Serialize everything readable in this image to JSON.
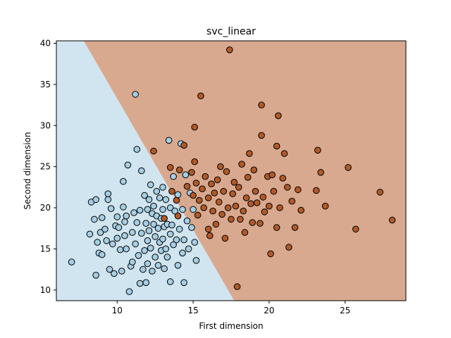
{
  "chart_data": {
    "type": "scatter",
    "title": "svc_linear",
    "xlabel": "First dimension",
    "ylabel": "Second dimension",
    "xlim": [
      6.0,
      29.0
    ],
    "ylim": [
      8.7,
      40.3
    ],
    "xticks": [
      10,
      15,
      20,
      25
    ],
    "yticks": [
      10,
      15,
      20,
      25,
      30,
      35,
      40
    ],
    "grid": false,
    "legend": "none",
    "decision_boundary": {
      "points": [
        [
          7.8,
          40.3
        ],
        [
          17.7,
          8.7
        ]
      ],
      "left_region_color": "#d1e5f0",
      "right_region_color": "#d9a98f"
    },
    "series": [
      {
        "color": "#a6cee3",
        "points": [
          [
            7.0,
            13.4
          ],
          [
            8.2,
            16.8
          ],
          [
            8.3,
            20.7
          ],
          [
            8.5,
            18.6
          ],
          [
            8.6,
            11.8
          ],
          [
            8.6,
            21.0
          ],
          [
            8.7,
            15.8
          ],
          [
            8.8,
            14.5
          ],
          [
            8.9,
            17.0
          ],
          [
            9.0,
            14.3
          ],
          [
            9.0,
            18.8
          ],
          [
            9.2,
            17.4
          ],
          [
            9.3,
            16.0
          ],
          [
            9.4,
            21.7
          ],
          [
            9.4,
            21.0
          ],
          [
            9.5,
            12.5
          ],
          [
            9.6,
            19.9
          ],
          [
            9.7,
            15.6
          ],
          [
            9.8,
            12.0
          ],
          [
            9.9,
            17.8
          ],
          [
            10.0,
            18.9
          ],
          [
            10.0,
            16.3
          ],
          [
            10.1,
            17.6
          ],
          [
            10.2,
            14.9
          ],
          [
            10.3,
            12.3
          ],
          [
            10.4,
            23.2
          ],
          [
            10.4,
            20.1
          ],
          [
            10.5,
            18.3
          ],
          [
            10.5,
            16.6
          ],
          [
            10.6,
            19.0
          ],
          [
            10.6,
            15.0
          ],
          [
            10.7,
            25.2
          ],
          [
            10.8,
            9.8
          ],
          [
            10.9,
            12.9
          ],
          [
            11.0,
            17.0
          ],
          [
            11.0,
            13.4
          ],
          [
            11.1,
            19.4
          ],
          [
            11.2,
            15.6
          ],
          [
            11.2,
            33.8
          ],
          [
            11.3,
            18.2
          ],
          [
            11.3,
            27.1
          ],
          [
            11.4,
            14.2
          ],
          [
            11.5,
            10.8
          ],
          [
            11.5,
            19.7
          ],
          [
            11.6,
            24.5
          ],
          [
            11.6,
            16.9
          ],
          [
            11.7,
            12.5
          ],
          [
            11.8,
            21.5
          ],
          [
            11.8,
            14.8
          ],
          [
            11.9,
            18.1
          ],
          [
            11.9,
            10.9
          ],
          [
            12.0,
            19.8
          ],
          [
            12.0,
            16.0
          ],
          [
            12.0,
            13.2
          ],
          [
            12.1,
            21.0
          ],
          [
            12.1,
            17.2
          ],
          [
            12.2,
            22.8
          ],
          [
            12.2,
            15.1
          ],
          [
            12.3,
            19.3
          ],
          [
            12.3,
            12.3
          ],
          [
            12.4,
            20.2
          ],
          [
            12.4,
            18.0
          ],
          [
            12.5,
            16.5
          ],
          [
            12.5,
            14.0
          ],
          [
            12.6,
            22.0
          ],
          [
            12.6,
            19.0
          ],
          [
            12.7,
            17.5
          ],
          [
            12.7,
            13.0
          ],
          [
            12.8,
            21.2
          ],
          [
            12.8,
            15.8
          ],
          [
            12.9,
            18.7
          ],
          [
            12.9,
            14.8
          ],
          [
            13.0,
            22.5
          ],
          [
            13.0,
            19.8
          ],
          [
            13.0,
            16.2
          ],
          [
            13.1,
            17.7
          ],
          [
            13.1,
            12.6
          ],
          [
            13.2,
            21.0
          ],
          [
            13.2,
            15.0
          ],
          [
            13.3,
            18.0
          ],
          [
            13.3,
            14.0
          ],
          [
            13.4,
            28.2
          ],
          [
            13.5,
            20.0
          ],
          [
            13.5,
            16.8
          ],
          [
            13.5,
            11.0
          ],
          [
            13.6,
            17.9
          ],
          [
            13.7,
            23.8
          ],
          [
            13.7,
            15.5
          ],
          [
            13.8,
            19.6
          ],
          [
            13.9,
            16.1
          ],
          [
            14.0,
            21.6
          ],
          [
            14.0,
            13.0
          ],
          [
            14.1,
            17.4
          ],
          [
            14.2,
            27.8
          ],
          [
            14.3,
            19.8
          ],
          [
            14.3,
            14.5
          ],
          [
            14.4,
            16.1
          ],
          [
            14.4,
            10.9
          ],
          [
            14.5,
            24.0
          ],
          [
            14.6,
            18.4
          ],
          [
            14.7,
            15.0
          ],
          [
            14.8,
            21.8
          ],
          [
            14.9,
            17.6
          ],
          [
            15.0,
            19.8
          ],
          [
            15.1,
            15.8
          ],
          [
            15.2,
            13.6
          ]
        ]
      },
      {
        "color": "#b15928",
        "points": [
          [
            12.4,
            26.9
          ],
          [
            13.1,
            18.7
          ],
          [
            13.5,
            24.9
          ],
          [
            13.6,
            22.0
          ],
          [
            13.9,
            20.9
          ],
          [
            14.0,
            19.0
          ],
          [
            14.1,
            24.6
          ],
          [
            14.4,
            27.6
          ],
          [
            14.6,
            22.6
          ],
          [
            14.9,
            24.3
          ],
          [
            15.0,
            21.5
          ],
          [
            15.1,
            29.8
          ],
          [
            15.1,
            25.6
          ],
          [
            15.2,
            23.0
          ],
          [
            15.3,
            19.1
          ],
          [
            15.4,
            20.9
          ],
          [
            15.5,
            33.6
          ],
          [
            15.6,
            22.3
          ],
          [
            15.7,
            20.0
          ],
          [
            15.8,
            23.8
          ],
          [
            16.0,
            17.4
          ],
          [
            16.0,
            21.2
          ],
          [
            16.1,
            16.6
          ],
          [
            16.2,
            22.9
          ],
          [
            16.3,
            19.6
          ],
          [
            16.4,
            21.8
          ],
          [
            16.5,
            18.0
          ],
          [
            16.6,
            23.4
          ],
          [
            16.7,
            20.7
          ],
          [
            16.8,
            25.0
          ],
          [
            16.9,
            19.2
          ],
          [
            17.0,
            22.0
          ],
          [
            17.1,
            16.3
          ],
          [
            17.2,
            24.4
          ],
          [
            17.3,
            20.0
          ],
          [
            17.4,
            39.2
          ],
          [
            17.5,
            18.6
          ],
          [
            17.6,
            21.7
          ],
          [
            17.7,
            23.1
          ],
          [
            17.8,
            20.2
          ],
          [
            17.9,
            10.4
          ],
          [
            18.0,
            22.5
          ],
          [
            18.1,
            18.6
          ],
          [
            18.2,
            25.3
          ],
          [
            18.3,
            19.6
          ],
          [
            18.4,
            17.0
          ],
          [
            18.5,
            21.2
          ],
          [
            18.6,
            23.7
          ],
          [
            18.7,
            26.6
          ],
          [
            18.8,
            20.5
          ],
          [
            18.9,
            18.2
          ],
          [
            19.0,
            24.6
          ],
          [
            19.1,
            22.0
          ],
          [
            19.2,
            20.6
          ],
          [
            19.4,
            18.1
          ],
          [
            19.5,
            32.5
          ],
          [
            19.5,
            28.8
          ],
          [
            19.6,
            21.3
          ],
          [
            19.7,
            19.5
          ],
          [
            19.9,
            23.8
          ],
          [
            20.0,
            20.2
          ],
          [
            20.1,
            14.4
          ],
          [
            20.2,
            24.0
          ],
          [
            20.3,
            22.0
          ],
          [
            20.5,
            27.5
          ],
          [
            20.5,
            17.6
          ],
          [
            20.6,
            31.2
          ],
          [
            20.7,
            20.0
          ],
          [
            20.9,
            23.6
          ],
          [
            21.0,
            26.6
          ],
          [
            21.2,
            22.5
          ],
          [
            21.3,
            15.2
          ],
          [
            21.5,
            20.8
          ],
          [
            21.7,
            17.6
          ],
          [
            21.9,
            22.2
          ],
          [
            22.1,
            19.7
          ],
          [
            23.1,
            22.1
          ],
          [
            23.2,
            27.0
          ],
          [
            23.4,
            24.3
          ],
          [
            23.7,
            20.2
          ],
          [
            25.2,
            24.9
          ],
          [
            25.7,
            17.4
          ],
          [
            27.3,
            21.9
          ],
          [
            28.1,
            18.5
          ]
        ]
      }
    ]
  }
}
